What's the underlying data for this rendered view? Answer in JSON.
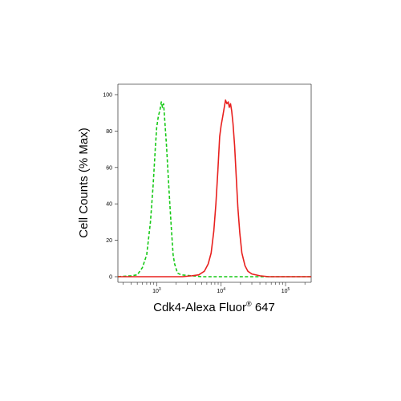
{
  "chart_data": {
    "type": "line",
    "xlabel_main": "Cdk4-Alexa Fluor",
    "xlabel_sup": "®",
    "xlabel_tail": " 647",
    "ylabel": "Cell Counts (% Max)",
    "x_scale": "log",
    "xlim": [
      250,
      250000
    ],
    "ylim": [
      0,
      100
    ],
    "y_ticks": [
      0,
      20,
      40,
      60,
      80,
      100
    ],
    "y_tick_labels": [
      "0",
      "20",
      "40",
      "60",
      "80",
      "100"
    ],
    "x_ticks": [
      1000,
      10000,
      100000
    ],
    "x_tick_labels": [
      {
        "base": "10",
        "exp": "3"
      },
      {
        "base": "10",
        "exp": "4"
      },
      {
        "base": "10",
        "exp": "5"
      }
    ],
    "grid": false,
    "series": [
      {
        "color": "#17c917",
        "dash": "dashed",
        "points": [
          [
            250,
            0
          ],
          [
            400,
            0.5
          ],
          [
            500,
            1
          ],
          [
            600,
            5
          ],
          [
            700,
            12
          ],
          [
            800,
            30
          ],
          [
            880,
            50
          ],
          [
            950,
            70
          ],
          [
            1000,
            82
          ],
          [
            1060,
            88
          ],
          [
            1130,
            92
          ],
          [
            1180,
            96
          ],
          [
            1230,
            93
          ],
          [
            1280,
            95
          ],
          [
            1340,
            85
          ],
          [
            1420,
            72
          ],
          [
            1500,
            57
          ],
          [
            1600,
            40
          ],
          [
            1700,
            25
          ],
          [
            1800,
            12
          ],
          [
            1900,
            7
          ],
          [
            2100,
            2
          ],
          [
            2400,
            1
          ],
          [
            3500,
            0.5
          ],
          [
            5000,
            0
          ],
          [
            20000,
            0
          ],
          [
            250000,
            0
          ]
        ]
      },
      {
        "color": "#e8201e",
        "dash": "solid",
        "points": [
          [
            250,
            0
          ],
          [
            1500,
            0
          ],
          [
            2500,
            0
          ],
          [
            3500,
            0.5
          ],
          [
            4500,
            1
          ],
          [
            5500,
            3
          ],
          [
            6300,
            7
          ],
          [
            7000,
            13
          ],
          [
            7700,
            25
          ],
          [
            8300,
            40
          ],
          [
            8900,
            58
          ],
          [
            9500,
            77
          ],
          [
            10000,
            83
          ],
          [
            10600,
            88
          ],
          [
            11200,
            93
          ],
          [
            11700,
            97
          ],
          [
            12300,
            95
          ],
          [
            12900,
            96
          ],
          [
            13400,
            93
          ],
          [
            14000,
            95
          ],
          [
            14600,
            91
          ],
          [
            15300,
            84
          ],
          [
            16200,
            72
          ],
          [
            17100,
            56
          ],
          [
            18200,
            38
          ],
          [
            19500,
            24
          ],
          [
            21000,
            13
          ],
          [
            23500,
            6
          ],
          [
            26000,
            3
          ],
          [
            30000,
            1.5
          ],
          [
            40000,
            0.5
          ],
          [
            55000,
            0
          ],
          [
            250000,
            0
          ]
        ]
      }
    ]
  }
}
